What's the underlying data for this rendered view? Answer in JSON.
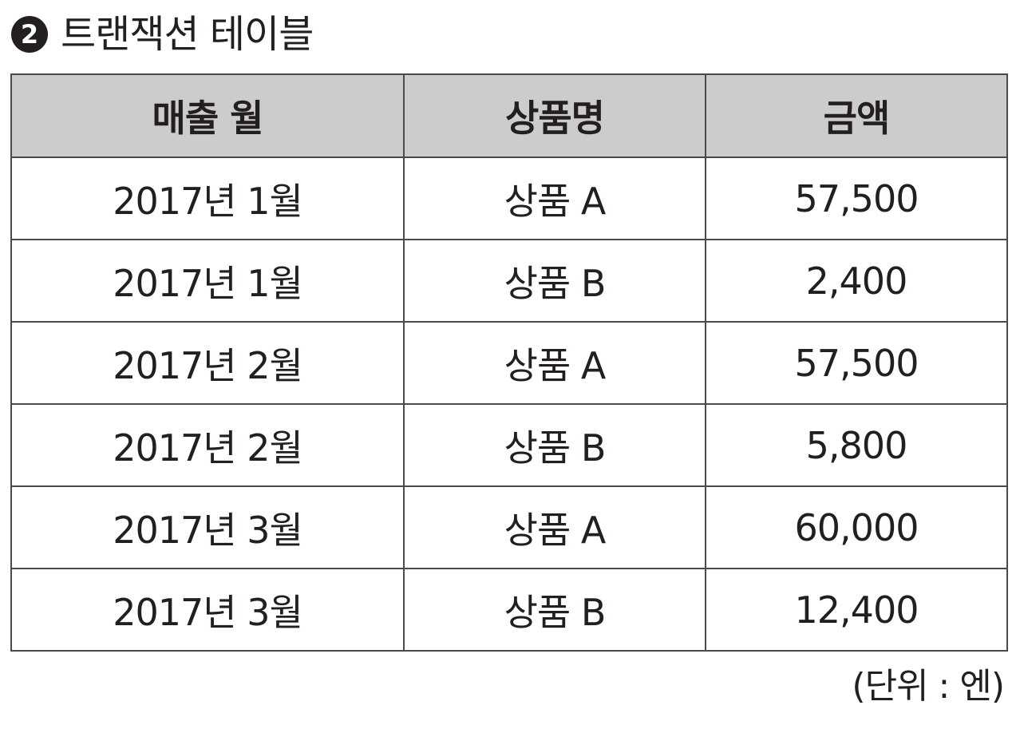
{
  "title": {
    "number": "2",
    "text": "트랜잭션 테이블"
  },
  "table": {
    "headers": [
      "매출 월",
      "상품명",
      "금액"
    ],
    "rows": [
      [
        "2017년 1월",
        "상품 A",
        "57,500"
      ],
      [
        "2017년 1월",
        "상품 B",
        "2,400"
      ],
      [
        "2017년 2월",
        "상품 A",
        "57,500"
      ],
      [
        "2017년 2월",
        "상품 B",
        "5,800"
      ],
      [
        "2017년 3월",
        "상품 A",
        "60,000"
      ],
      [
        "2017년 3월",
        "상품 B",
        "12,400"
      ]
    ]
  },
  "unit_note": "(단위 : 엔)",
  "colors": {
    "header_background": "#cccccc",
    "border": "#4a4a4a",
    "text": "#231f20"
  }
}
